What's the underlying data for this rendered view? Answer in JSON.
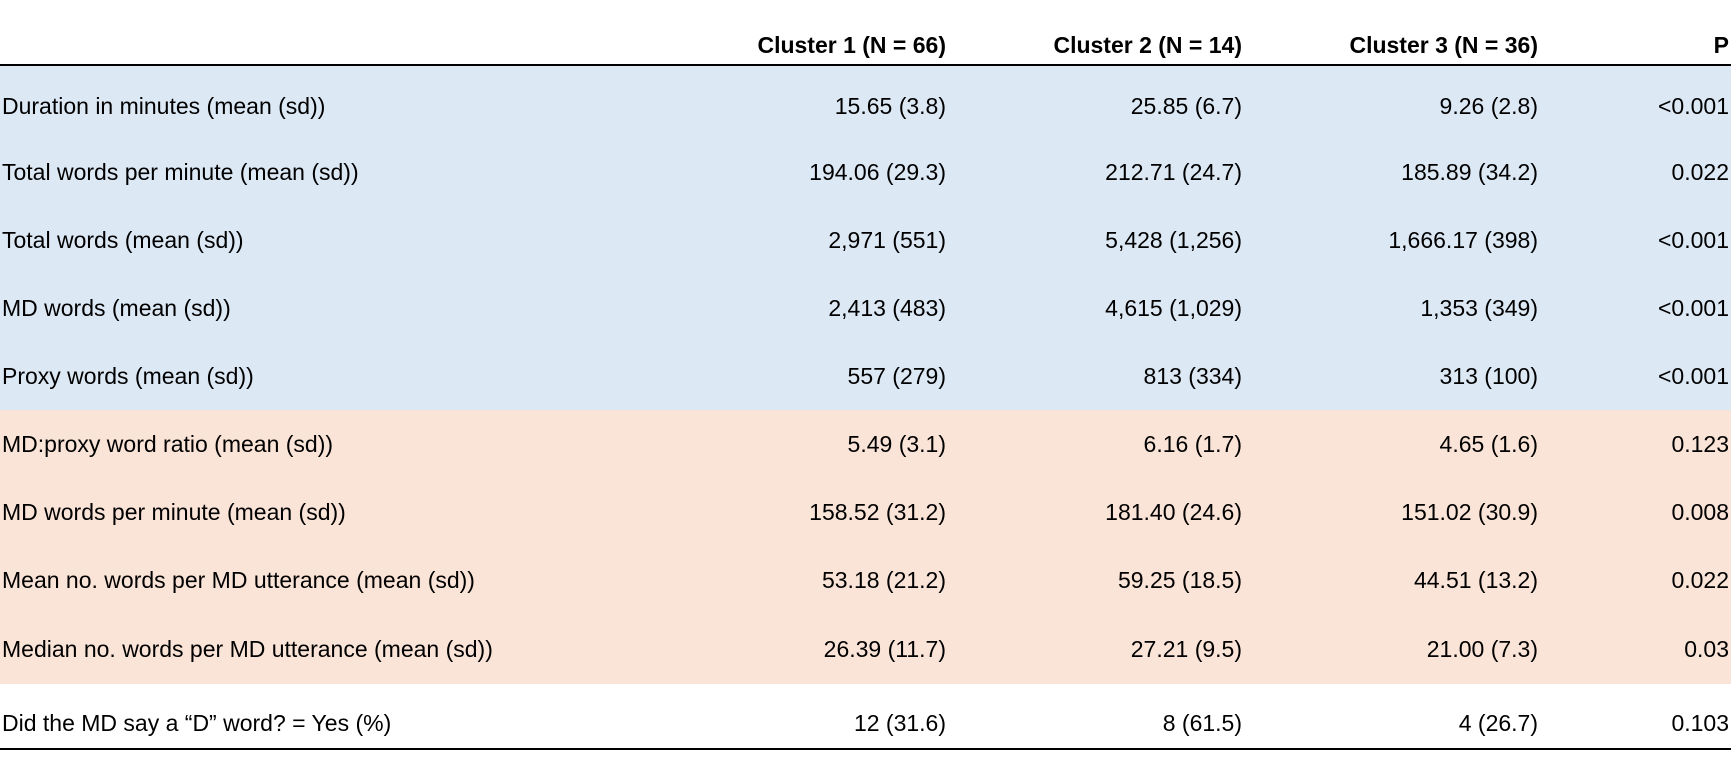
{
  "table": {
    "headers": [
      "",
      "Cluster 1  (N = 66)",
      "Cluster 2 (N = 14)",
      "Cluster 3 (N = 36)",
      "P"
    ],
    "group_colors": {
      "blue": "#dde8f5",
      "peach": "#fae3d7",
      "white": "#ffffff"
    },
    "rows": [
      {
        "label": "Duration in minutes (mean (sd))",
        "c1": "15.65 (3.8)",
        "c2": "25.85 (6.7)",
        "c3": "9.26 (2.8)",
        "p": "<0.001",
        "group": "blue"
      },
      {
        "label": "Total words per minute (mean (sd))",
        "c1": "194.06 (29.3)",
        "c2": "212.71 (24.7)",
        "c3": "185.89 (34.2)",
        "p": "0.022",
        "group": "blue"
      },
      {
        "label": "Total words (mean (sd))",
        "c1": "2,971 (551)",
        "c2": "5,428 (1,256)",
        "c3": "1,666.17 (398)",
        "p": "<0.001",
        "group": "blue"
      },
      {
        "label": "MD words (mean (sd))",
        "c1": "2,413 (483)",
        "c2": "4,615 (1,029)",
        "c3": "1,353 (349)",
        "p": "<0.001",
        "group": "blue"
      },
      {
        "label": "Proxy words (mean (sd))",
        "c1": "557 (279)",
        "c2": "813 (334)",
        "c3": "313 (100)",
        "p": "<0.001",
        "group": "blue"
      },
      {
        "label": "MD:proxy word ratio (mean (sd))",
        "c1": "5.49 (3.1)",
        "c2": "6.16 (1.7)",
        "c3": "4.65 (1.6)",
        "p": "0.123",
        "group": "peach"
      },
      {
        "label": "MD words per minute (mean (sd))",
        "c1": "158.52 (31.2)",
        "c2": "181.40 (24.6)",
        "c3": "151.02 (30.9)",
        "p": "0.008",
        "group": "peach"
      },
      {
        "label": "Mean no. words per MD utterance (mean (sd))",
        "c1": "53.18 (21.2)",
        "c2": "59.25 (18.5)",
        "c3": "44.51 (13.2)",
        "p": "0.022",
        "group": "peach"
      },
      {
        "label": "Median no. words per MD utterance (mean (sd))",
        "c1": "26.39 (11.7)",
        "c2": "27.21 (9.5)",
        "c3": "21.00 (7.3)",
        "p": "0.03",
        "group": "peach"
      },
      {
        "label": "Did the MD say a “D” word? = Yes (%)",
        "c1": "12 (31.6)",
        "c2": "8 (61.5)",
        "c3": "4 (26.7)",
        "p": "0.103",
        "group": "white"
      }
    ]
  }
}
